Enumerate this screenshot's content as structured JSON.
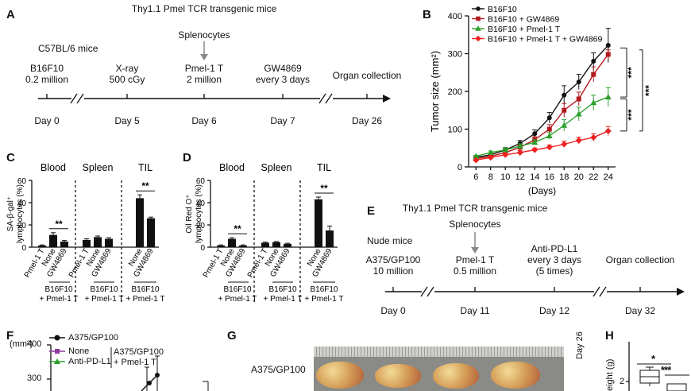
{
  "panel_letters": {
    "a": "A",
    "b": "B",
    "c": "C",
    "d": "D",
    "e": "E",
    "f": "F",
    "g": "G",
    "h": "H"
  },
  "panel_a": {
    "header_line1": "Thy1.1 Pmel TCR transgenic mice",
    "header_line2": "Splenocytes",
    "mice": "C57BL/6 mice",
    "events": [
      {
        "top": "B16F10",
        "bottom": "0.2 million",
        "day": "Day 0"
      },
      {
        "top": "X-ray",
        "bottom": "500 cGy",
        "day": "Day 5"
      },
      {
        "top": "Pmel-1 T",
        "bottom": "2 million",
        "day": "Day 6"
      },
      {
        "top": "GW4869",
        "bottom": "every 3 days",
        "day": "Day 7"
      },
      {
        "top": "Organ collection",
        "bottom": "",
        "day": "Day 26"
      }
    ]
  },
  "panel_b": {
    "legend": [
      "B16F10",
      "B16F10 + GW4869",
      "B16F10 + Pmel-1 T",
      "B16F10 + Pmel-1 T + GW4869"
    ],
    "colors": [
      "#111111",
      "#b3191e",
      "#2ca02c",
      "#ee2222"
    ],
    "sig": [
      "***",
      "***",
      "***"
    ]
  },
  "panel_c": {
    "ylabel_line1": "SA-β-gal⁺",
    "ylabel_line2": "lymphocytes (%)",
    "groups": [
      "Blood",
      "Spleen",
      "TIL"
    ],
    "cat_labels": [
      "Pmel-1 T",
      "None",
      "GW4869",
      "Pmel-1 T",
      "None",
      "GW4869",
      "None",
      "GW4869"
    ],
    "sub_label_line1": "B16F10",
    "sub_label_line2": "+ Pmel-1 T",
    "sig": [
      "**",
      "**"
    ]
  },
  "panel_d": {
    "ylabel_line1": "Oil Red O⁺",
    "ylabel_line2": "lymphocytes (%)",
    "groups": [
      "Blood",
      "Spleen",
      "TIL"
    ],
    "cat_labels": [
      "Pmel-1 T",
      "None",
      "GW4869",
      "Pmel-1 T",
      "None",
      "GW4869",
      "None",
      "GW4869"
    ],
    "sub_label_line1": "B16F10",
    "sub_label_line2": "+ Pmel-1 T",
    "sig": [
      "**",
      "**"
    ]
  },
  "panel_e": {
    "header_line1": "Thy1.1 Pmel TCR transgenic mice",
    "header_line2": "Splenocytes",
    "mice": "Nude mice",
    "events": [
      {
        "top": "A375/GP100",
        "bottom": "10 million",
        "extra": "",
        "day": "Day 0"
      },
      {
        "top": "Pmel-1 T",
        "bottom": "0.5 million",
        "extra": "",
        "day": "Day 11"
      },
      {
        "top": "Anti-PD-L1",
        "bottom": "every 3 days",
        "extra": "(5 times)",
        "day": "Day 12"
      },
      {
        "top": "Organ collection",
        "bottom": "",
        "extra": "",
        "day": "Day 32"
      }
    ]
  },
  "panel_f": {
    "legend": [
      "A375/GP100",
      "None",
      "Anti-PD-L1"
    ],
    "bracket_line1": "A375/GP100",
    "bracket_line2": "+ Pmel-1 T",
    "ylabel": "(mm²)",
    "yticks": [
      "400",
      "300"
    ]
  },
  "panel_g": {
    "row_label": "A375/GP100",
    "day_label": "Day 26"
  },
  "panel_h": {
    "ylabel": "eight (g)",
    "ytick": "2",
    "sig": [
      "*",
      "***"
    ]
  },
  "chart_data": [
    {
      "panel": "B",
      "type": "line",
      "xlabel": "(Days)",
      "ylabel": "Tumor size (mm²)",
      "x": [
        6,
        8,
        10,
        12,
        14,
        16,
        18,
        20,
        22,
        24
      ],
      "xticks": [
        "6",
        "8",
        "10",
        "12",
        "14",
        "16",
        "18",
        "20",
        "22",
        "24"
      ],
      "ylim": [
        0,
        400
      ],
      "yticks": [
        "0",
        "100",
        "200",
        "300",
        "400"
      ],
      "series": [
        {
          "name": "B16F10",
          "values": [
            25,
            32,
            45,
            62,
            88,
            130,
            190,
            225,
            280,
            322
          ],
          "errors": [
            4,
            5,
            6,
            8,
            10,
            14,
            25,
            20,
            22,
            45
          ]
        },
        {
          "name": "B16F10 + GW4869",
          "values": [
            22,
            28,
            38,
            52,
            72,
            100,
            150,
            180,
            245,
            298
          ],
          "errors": [
            3,
            4,
            5,
            6,
            8,
            12,
            18,
            18,
            20,
            12
          ]
        },
        {
          "name": "B16F10 + Pmel-1 T",
          "values": [
            28,
            38,
            45,
            55,
            65,
            82,
            110,
            140,
            170,
            185
          ],
          "errors": [
            3,
            4,
            5,
            6,
            7,
            9,
            15,
            18,
            20,
            25
          ]
        },
        {
          "name": "B16F10 + Pmel-1 T + GW4869",
          "values": [
            18,
            25,
            32,
            38,
            45,
            52,
            60,
            70,
            78,
            95
          ],
          "errors": [
            2,
            3,
            4,
            5,
            5,
            6,
            8,
            9,
            10,
            12
          ]
        }
      ]
    },
    {
      "panel": "C",
      "type": "bar",
      "ylabel": "SA-β-gal⁺ lymphocytes (%)",
      "ylim": [
        0,
        60
      ],
      "yticks": [
        "0",
        "20",
        "40",
        "60"
      ],
      "groups": [
        "Blood",
        "Spleen",
        "TIL"
      ],
      "categories": [
        "Pmel-1 T",
        "None",
        "GW4869",
        "Pmel-1 T",
        "None",
        "GW4869",
        "None",
        "GW4869"
      ],
      "values": [
        1.5,
        11,
        5,
        6.5,
        9,
        7.5,
        44,
        26
      ],
      "errors": [
        0.5,
        2,
        1,
        1,
        1,
        1,
        3,
        1
      ]
    },
    {
      "panel": "D",
      "type": "bar",
      "ylabel": "Oil Red O⁺ lymphocytes (%)",
      "ylim": [
        0,
        60
      ],
      "yticks": [
        "0",
        "20",
        "40",
        "60"
      ],
      "groups": [
        "Blood",
        "Spleen",
        "TIL"
      ],
      "categories": [
        "Pmel-1 T",
        "None",
        "GW4869",
        "Pmel-1 T",
        "None",
        "GW4869",
        "None",
        "GW4869"
      ],
      "values": [
        1.5,
        7.5,
        1.5,
        4,
        4.5,
        3,
        43,
        15
      ],
      "errors": [
        0.5,
        1,
        0.5,
        0.5,
        0.5,
        0.5,
        2,
        4
      ]
    }
  ]
}
